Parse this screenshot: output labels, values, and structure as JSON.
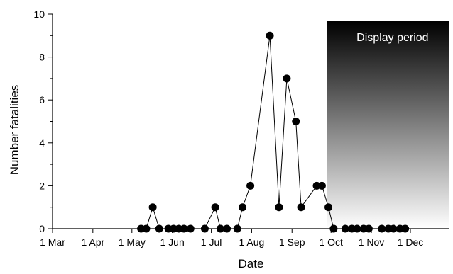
{
  "chart_data": {
    "type": "line",
    "xlabel": "Date",
    "ylabel": "Number fatalities",
    "ylim": [
      0,
      10
    ],
    "yticks": [
      0,
      2,
      4,
      6,
      8,
      10
    ],
    "xlim": [
      "2016-03-01",
      "2016-12-31"
    ],
    "xticks": [
      {
        "date": "2016-03-01",
        "label": "1 Mar"
      },
      {
        "date": "2016-04-01",
        "label": "1 Apr"
      },
      {
        "date": "2016-05-01",
        "label": "1 May"
      },
      {
        "date": "2016-06-01",
        "label": "1 Jun"
      },
      {
        "date": "2016-07-01",
        "label": "1 Jul"
      },
      {
        "date": "2016-08-01",
        "label": "1 Aug"
      },
      {
        "date": "2016-09-01",
        "label": "1 Sep"
      },
      {
        "date": "2016-10-01",
        "label": "1 Oct"
      },
      {
        "date": "2016-11-01",
        "label": "1 Nov"
      },
      {
        "date": "2016-12-01",
        "label": "1 Dec"
      }
    ],
    "grid": false,
    "annotation": {
      "label": "Display period",
      "start": "2016-09-28"
    },
    "series": [
      {
        "marker": "filled-circle",
        "color": "#000000",
        "points": [
          {
            "x": "2016-05-08",
            "y": 0
          },
          {
            "x": "2016-05-12",
            "y": 0
          },
          {
            "x": "2016-05-17",
            "y": 1
          },
          {
            "x": "2016-05-22",
            "y": 0
          },
          {
            "x": "2016-05-29",
            "y": 0
          },
          {
            "x": "2016-06-02",
            "y": 0
          },
          {
            "x": "2016-06-06",
            "y": 0
          },
          {
            "x": "2016-06-10",
            "y": 0
          },
          {
            "x": "2016-06-15",
            "y": 0
          },
          {
            "x": "2016-06-26",
            "y": 0
          },
          {
            "x": "2016-07-04",
            "y": 1
          },
          {
            "x": "2016-07-08",
            "y": 0
          },
          {
            "x": "2016-07-13",
            "y": 0
          },
          {
            "x": "2016-07-21",
            "y": 0
          },
          {
            "x": "2016-07-25",
            "y": 1
          },
          {
            "x": "2016-07-31",
            "y": 2
          },
          {
            "x": "2016-08-15",
            "y": 9
          },
          {
            "x": "2016-08-22",
            "y": 1
          },
          {
            "x": "2016-08-28",
            "y": 7
          },
          {
            "x": "2016-09-04",
            "y": 5
          },
          {
            "x": "2016-09-08",
            "y": 1
          },
          {
            "x": "2016-09-20",
            "y": 2
          },
          {
            "x": "2016-09-24",
            "y": 2
          },
          {
            "x": "2016-09-29",
            "y": 1
          },
          {
            "x": "2016-10-03",
            "y": 0
          },
          {
            "x": "2016-10-12",
            "y": 0
          },
          {
            "x": "2016-10-17",
            "y": 0
          },
          {
            "x": "2016-10-21",
            "y": 0
          },
          {
            "x": "2016-10-26",
            "y": 0
          },
          {
            "x": "2016-10-30",
            "y": 0
          },
          {
            "x": "2016-11-09",
            "y": 0
          },
          {
            "x": "2016-11-14",
            "y": 0
          },
          {
            "x": "2016-11-18",
            "y": 0
          },
          {
            "x": "2016-11-23",
            "y": 0
          },
          {
            "x": "2016-11-27",
            "y": 0
          }
        ]
      }
    ]
  }
}
